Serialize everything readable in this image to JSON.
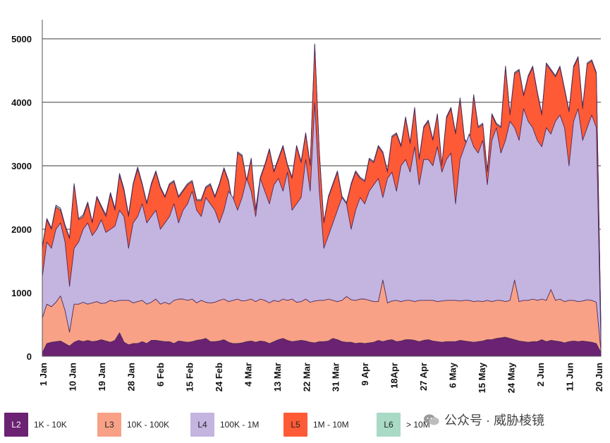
{
  "chart_data": {
    "type": "area",
    "stacked": true,
    "y_ticks": [
      0,
      1000,
      2000,
      3000,
      4000,
      5000
    ],
    "ylim": [
      0,
      5300
    ],
    "x_tick_labels": [
      "1 Jan",
      "10 Jan",
      "19 Jan",
      "28 Jan",
      "6 Feb",
      "15 Feb",
      "24 Feb",
      "4 Mar",
      "13 Mar",
      "22 Mar",
      "31 Mar",
      "9 Apr",
      "18Apr",
      "27 Apr",
      "6 May",
      "15 May",
      "24 May",
      "2 Jun",
      "11 Jun",
      "20 Jun"
    ],
    "grid": "horizontal",
    "legend_position": "bottom",
    "series": [
      {
        "name": "1K - 10K",
        "code": "L2",
        "color": "#6b2272",
        "totals": [
          50,
          200,
          220,
          230,
          240,
          200,
          160,
          220,
          250,
          230,
          250,
          230,
          240,
          260,
          240,
          220,
          250,
          370,
          220,
          180,
          200,
          200,
          230,
          200,
          250,
          250,
          240,
          230,
          230,
          200,
          240,
          230,
          220,
          230,
          250,
          260,
          280,
          230,
          230,
          240,
          260,
          220,
          200,
          200,
          210,
          230,
          240,
          220,
          240,
          230,
          200,
          230,
          260,
          280,
          250,
          230,
          240,
          250,
          240,
          220,
          210,
          230,
          230,
          240,
          280,
          260,
          230,
          220,
          220,
          200,
          210,
          200,
          210,
          220,
          250,
          230,
          250,
          260,
          230,
          240,
          260,
          260,
          250,
          230,
          250,
          260,
          240,
          230,
          220,
          230,
          230,
          230,
          250,
          240,
          230,
          220,
          230,
          240,
          260,
          260,
          280,
          290,
          300,
          280,
          260,
          240,
          230,
          220,
          230,
          230,
          260,
          230,
          250,
          240,
          230,
          210,
          230,
          240,
          230,
          240,
          230,
          220,
          200,
          60
        ]
      },
      {
        "name": "10K - 100K",
        "code": "L3",
        "color": "#f9a186",
        "totals": [
          600,
          820,
          780,
          850,
          950,
          720,
          380,
          820,
          820,
          850,
          820,
          840,
          860,
          830,
          840,
          880,
          860,
          880,
          880,
          880,
          840,
          860,
          880,
          820,
          850,
          900,
          820,
          850,
          820,
          880,
          900,
          900,
          880,
          900,
          840,
          880,
          850,
          840,
          850,
          880,
          900,
          860,
          880,
          900,
          870,
          880,
          900,
          860,
          900,
          880,
          840,
          880,
          860,
          900,
          880,
          900,
          850,
          860,
          900,
          850,
          870,
          880,
          880,
          900,
          880,
          860,
          880,
          940,
          890,
          880,
          900,
          900,
          880,
          860,
          860,
          1200,
          840,
          870,
          880,
          860,
          880,
          880,
          860,
          880,
          880,
          880,
          880,
          860,
          870,
          880,
          880,
          880,
          870,
          880,
          880,
          860,
          870,
          860,
          880,
          860,
          880,
          880,
          860,
          880,
          1200,
          860,
          880,
          880,
          900,
          880,
          900,
          880,
          1050,
          880,
          900,
          860,
          880,
          880,
          860,
          870,
          890,
          880,
          850,
          100
        ]
      },
      {
        "name": "100K - 1M",
        "code": "L4",
        "color": "#c4b4e0",
        "totals": [
          1250,
          1800,
          1700,
          2000,
          2100,
          1800,
          1100,
          1700,
          1800,
          2000,
          2100,
          1900,
          2000,
          2150,
          1950,
          2000,
          2050,
          2300,
          2200,
          1700,
          2100,
          2200,
          2400,
          2100,
          2200,
          2300,
          2000,
          2100,
          2200,
          2400,
          2100,
          2300,
          2400,
          2600,
          2300,
          2200,
          2500,
          2400,
          2300,
          2100,
          2300,
          2600,
          2500,
          2300,
          2500,
          2800,
          2600,
          2200,
          2800,
          2600,
          2400,
          2700,
          2800,
          2600,
          2900,
          2300,
          2400,
          2500,
          3100,
          2600,
          4000,
          2600,
          1700,
          1900,
          2100,
          2300,
          2500,
          2400,
          2000,
          2300,
          2500,
          2400,
          2600,
          2700,
          2800,
          2500,
          2800,
          2900,
          2600,
          3000,
          3100,
          2900,
          3300,
          2700,
          3100,
          3100,
          3000,
          3300,
          2900,
          3100,
          3200,
          2400,
          3100,
          3300,
          3500,
          3300,
          3200,
          3400,
          2700,
          3400,
          3600,
          3200,
          3400,
          3700,
          3600,
          3400,
          3900,
          3700,
          3600,
          3400,
          3300,
          3600,
          3500,
          3700,
          3800,
          3600,
          3000,
          3700,
          3900,
          3400,
          3600,
          3800,
          3600,
          300
        ]
      },
      {
        "name": "1M - 10M",
        "code": "L5",
        "color": "#ff5a36",
        "totals": [
          1700,
          2150,
          2000,
          2350,
          2300,
          2050,
          1850,
          2700,
          2150,
          2200,
          2400,
          2100,
          2500,
          2350,
          2200,
          2550,
          2300,
          2850,
          2600,
          2200,
          2700,
          2950,
          2700,
          2400,
          2700,
          2900,
          2650,
          2500,
          2700,
          2750,
          2500,
          2600,
          2700,
          2750,
          2450,
          2450,
          2650,
          2700,
          2500,
          2700,
          2950,
          2750,
          2350,
          3200,
          3150,
          2750,
          3100,
          2300,
          2800,
          3000,
          3250,
          2900,
          3100,
          3300,
          3000,
          2800,
          3300,
          3050,
          3500,
          3000,
          4900,
          3200,
          2100,
          2500,
          2700,
          2900,
          2500,
          2400,
          2700,
          2900,
          2800,
          2750,
          3100,
          3050,
          3300,
          3200,
          2900,
          3450,
          3500,
          3300,
          3750,
          3350,
          3900,
          3100,
          3600,
          3700,
          3400,
          3800,
          3000,
          3750,
          3900,
          3500,
          4050,
          3400,
          3300,
          4100,
          3600,
          3650,
          2900,
          3800,
          3650,
          3600,
          4550,
          3800,
          4450,
          4500,
          4100,
          4400,
          4550,
          4150,
          3800,
          4600,
          4500,
          4400,
          4550,
          4200,
          3850,
          4550,
          4700,
          3900,
          4600,
          4650,
          4450,
          500
        ]
      },
      {
        "name": "> 10M",
        "code": "L6",
        "color": "#a8dac6",
        "totals": [
          1720,
          2170,
          2020,
          2380,
          2330,
          2070,
          1870,
          2720,
          2170,
          2230,
          2430,
          2120,
          2520,
          2370,
          2230,
          2580,
          2330,
          2880,
          2630,
          2230,
          2720,
          2980,
          2720,
          2420,
          2720,
          2920,
          2670,
          2520,
          2720,
          2770,
          2520,
          2620,
          2720,
          2770,
          2470,
          2470,
          2670,
          2720,
          2520,
          2720,
          2970,
          2770,
          2370,
          3220,
          3170,
          2770,
          3120,
          2320,
          2820,
          3020,
          3270,
          2920,
          3120,
          3320,
          3020,
          2820,
          3320,
          3070,
          3520,
          3020,
          4920,
          3220,
          2120,
          2520,
          2720,
          2920,
          2520,
          2420,
          2720,
          2920,
          2820,
          2770,
          3120,
          3070,
          3320,
          3220,
          2920,
          3470,
          3520,
          3320,
          3770,
          3370,
          3920,
          3120,
          3620,
          3720,
          3420,
          3820,
          3020,
          3770,
          3920,
          3520,
          4070,
          3420,
          3320,
          4120,
          3620,
          3670,
          2920,
          3820,
          3670,
          3620,
          4570,
          3820,
          4470,
          4520,
          4120,
          4420,
          4570,
          4170,
          3820,
          4620,
          4520,
          4420,
          4570,
          4220,
          3870,
          4570,
          4720,
          3920,
          4620,
          4670,
          4470,
          510
        ]
      }
    ]
  },
  "legend": [
    {
      "code": "L2",
      "label": "1K - 10K"
    },
    {
      "code": "L3",
      "label": "10K - 100K"
    },
    {
      "code": "L4",
      "label": "100K - 1M"
    },
    {
      "code": "L5",
      "label": "1M - 10M"
    },
    {
      "code": "L6",
      "label": "> 10M"
    }
  ],
  "watermark": {
    "text": "公众号 · 威胁棱镜",
    "icon": "wechat-icon"
  }
}
